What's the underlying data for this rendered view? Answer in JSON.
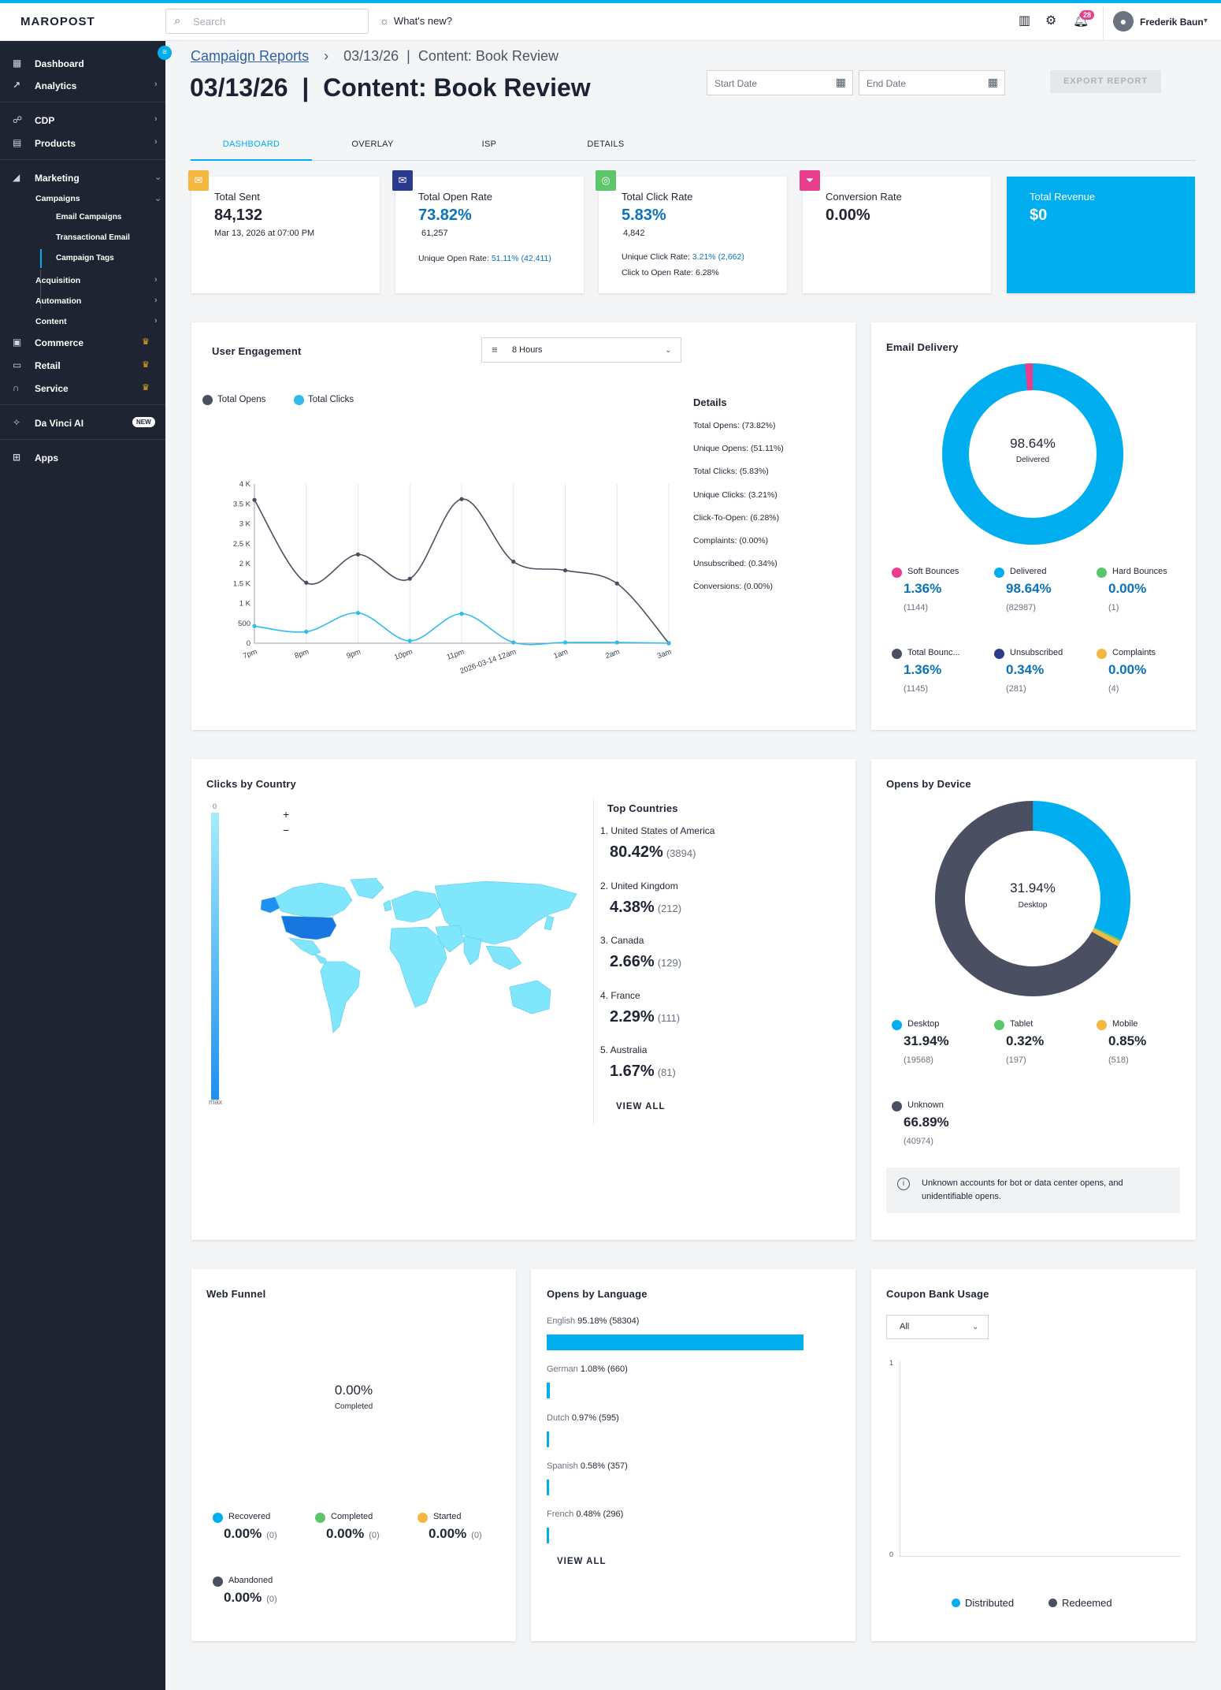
{
  "topbar": {
    "logo": "MAROPOST",
    "search_placeholder": "Search",
    "whats_new": "What's new?",
    "notification_count": "28",
    "user_name": "Frederik Baun"
  },
  "sidebar": {
    "items": [
      {
        "label": "Dashboard",
        "icon": "dashboard-icon"
      },
      {
        "label": "Analytics",
        "icon": "analytics-icon"
      },
      {
        "label": "CDP",
        "icon": "cdp-icon"
      },
      {
        "label": "Products",
        "icon": "products-icon"
      },
      {
        "label": "Marketing",
        "icon": "megaphone-icon"
      },
      {
        "label": "Commerce",
        "icon": "commerce-icon"
      },
      {
        "label": "Retail",
        "icon": "retail-icon"
      },
      {
        "label": "Service",
        "icon": "headset-icon"
      },
      {
        "label": "Da Vinci AI",
        "icon": "sparkle-icon"
      },
      {
        "label": "Apps",
        "icon": "apps-icon"
      }
    ],
    "marketing_sub": [
      "Campaigns",
      "Acquisition",
      "Automation",
      "Content"
    ],
    "campaigns_sub": [
      "Email Campaigns",
      "Transactional Email",
      "Campaign Tags"
    ],
    "new_badge": "NEW"
  },
  "header": {
    "breadcrumb_link": "Campaign Reports",
    "breadcrumb_sep": "›",
    "breadcrumb_current": "03/13/26  |  Content: Book Review",
    "title": "03/13/26  |  Content: Book Review",
    "start_date_placeholder": "Start Date",
    "end_date_placeholder": "End Date",
    "export_label": "EXPORT REPORT"
  },
  "tabs": [
    "DASHBOARD",
    "OVERLAY",
    "ISP",
    "DETAILS"
  ],
  "stats": {
    "total_sent": {
      "title": "Total Sent",
      "value": "84,132",
      "sub": "Mar 13, 2026 at 07:00 PM"
    },
    "open_rate": {
      "title": "Total Open Rate",
      "value": "73.82%",
      "count": "61,257",
      "unique_label": "Unique Open Rate: ",
      "unique_value": "51.11% (42,411)"
    },
    "click_rate": {
      "title": "Total Click Rate",
      "value": "5.83%",
      "count": "4,842",
      "unique_label": "Unique Click Rate: ",
      "unique_value": "3.21% (2,662)",
      "cto": "Click to Open Rate: 6.28%"
    },
    "conversion": {
      "title": "Conversion Rate",
      "value": "0.00%"
    },
    "revenue": {
      "title": "Total Revenue",
      "value": "$0"
    }
  },
  "engagement": {
    "title": "User Engagement",
    "filter": "8 Hours",
    "legend": [
      "Total Opens",
      "Total Clicks"
    ],
    "details_title": "Details",
    "details": [
      "Total Opens: (73.82%)",
      "Unique Opens: (51.11%)",
      "Total Clicks: (5.83%)",
      "Unique Clicks: (3.21%)",
      "Click-To-Open: (6.28%)",
      "Complaints: (0.00%)",
      "Unsubscribed: (0.34%)",
      "Conversions: (0.00%)"
    ]
  },
  "chart_data": {
    "type": "line",
    "x": [
      "7pm",
      "8pm",
      "9pm",
      "10pm",
      "11pm",
      "2026-03-14 12am",
      "1am",
      "2am",
      "3am"
    ],
    "yticks": [
      "0",
      "500",
      "1 K",
      "1.5 K",
      "2 K",
      "2.5 K",
      "3 K",
      "3.5 K",
      "4 K"
    ],
    "ylim": [
      0,
      4000
    ],
    "series": [
      {
        "name": "Total Opens",
        "color": "#4a5061",
        "values": [
          3600,
          1520,
          2230,
          1620,
          3620,
          2050,
          1830,
          1500,
          0
        ]
      },
      {
        "name": "Total Clicks",
        "color": "#2fbcec",
        "values": [
          430,
          290,
          760,
          60,
          740,
          20,
          20,
          20,
          0
        ]
      }
    ]
  },
  "delivery": {
    "title": "Email Delivery",
    "center_value": "98.64%",
    "center_label": "Delivered",
    "metrics": [
      {
        "label": "Soft Bounces",
        "value": "1.36%",
        "count": "(1144)",
        "color": "#e83e8c"
      },
      {
        "label": "Delivered",
        "value": "98.64%",
        "count": "(82987)",
        "color": "#00aef0"
      },
      {
        "label": "Hard Bounces",
        "value": "0.00%",
        "count": "(1)",
        "color": "#5cc66b"
      },
      {
        "label": "Total Bounc...",
        "value": "1.36%",
        "count": "(1145)",
        "color": "#4a5061"
      },
      {
        "label": "Unsubscribed",
        "value": "0.34%",
        "count": "(281)",
        "color": "#2a3a8c"
      },
      {
        "label": "Complaints",
        "value": "0.00%",
        "count": "(4)",
        "color": "#f4b740"
      }
    ]
  },
  "country": {
    "title": "Clicks by Country",
    "scale_min": "0",
    "scale_max": "max",
    "zoom_in": "+",
    "zoom_out": "−",
    "top_title": "Top Countries",
    "countries": [
      {
        "name": "1. United States of America",
        "pct": "80.42%",
        "count": "(3894)"
      },
      {
        "name": "2. United Kingdom",
        "pct": "4.38%",
        "count": "(212)"
      },
      {
        "name": "3. Canada",
        "pct": "2.66%",
        "count": "(129)"
      },
      {
        "name": "4. France",
        "pct": "2.29%",
        "count": "(111)"
      },
      {
        "name": "5. Australia",
        "pct": "1.67%",
        "count": "(81)"
      }
    ],
    "view_all": "VIEW ALL"
  },
  "device": {
    "title": "Opens by Device",
    "center_value": "31.94%",
    "center_label": "Desktop",
    "metrics": [
      {
        "label": "Desktop",
        "value": "31.94%",
        "count": "(19568)",
        "color": "#00aef0"
      },
      {
        "label": "Tablet",
        "value": "0.32%",
        "count": "(197)",
        "color": "#5cc66b"
      },
      {
        "label": "Mobile",
        "value": "0.85%",
        "count": "(518)",
        "color": "#f4b740"
      },
      {
        "label": "Unknown",
        "value": "66.89%",
        "count": "(40974)",
        "color": "#4a5061"
      }
    ],
    "info": "Unknown accounts for bot or data center opens, and unidentifiable opens."
  },
  "funnel": {
    "title": "Web Funnel",
    "center_value": "0.00%",
    "center_label": "Completed",
    "metrics": [
      {
        "label": "Recovered",
        "value": "0.00%",
        "count": "(0)",
        "color": "#00aef0"
      },
      {
        "label": "Completed",
        "value": "0.00%",
        "count": "(0)",
        "color": "#5cc66b"
      },
      {
        "label": "Started",
        "value": "0.00%",
        "count": "(0)",
        "color": "#f4b740"
      },
      {
        "label": "Abandoned",
        "value": "0.00%",
        "count": "(0)",
        "color": "#4a5061"
      }
    ]
  },
  "language": {
    "title": "Opens by Language",
    "items": [
      {
        "name": "English",
        "stat": "95.18% (58304)",
        "pct": 95.18
      },
      {
        "name": "German",
        "stat": "1.08% (660)",
        "pct": 1.08
      },
      {
        "name": "Dutch",
        "stat": "0.97% (595)",
        "pct": 0.97
      },
      {
        "name": "Spanish",
        "stat": "0.58% (357)",
        "pct": 0.58
      },
      {
        "name": "French",
        "stat": "0.48% (296)",
        "pct": 0.48
      }
    ],
    "view_all": "VIEW ALL"
  },
  "coupon": {
    "title": "Coupon Bank Usage",
    "filter": "All",
    "y_max": "1",
    "y_min": "0",
    "legend": [
      "Distributed",
      "Redeemed"
    ]
  }
}
